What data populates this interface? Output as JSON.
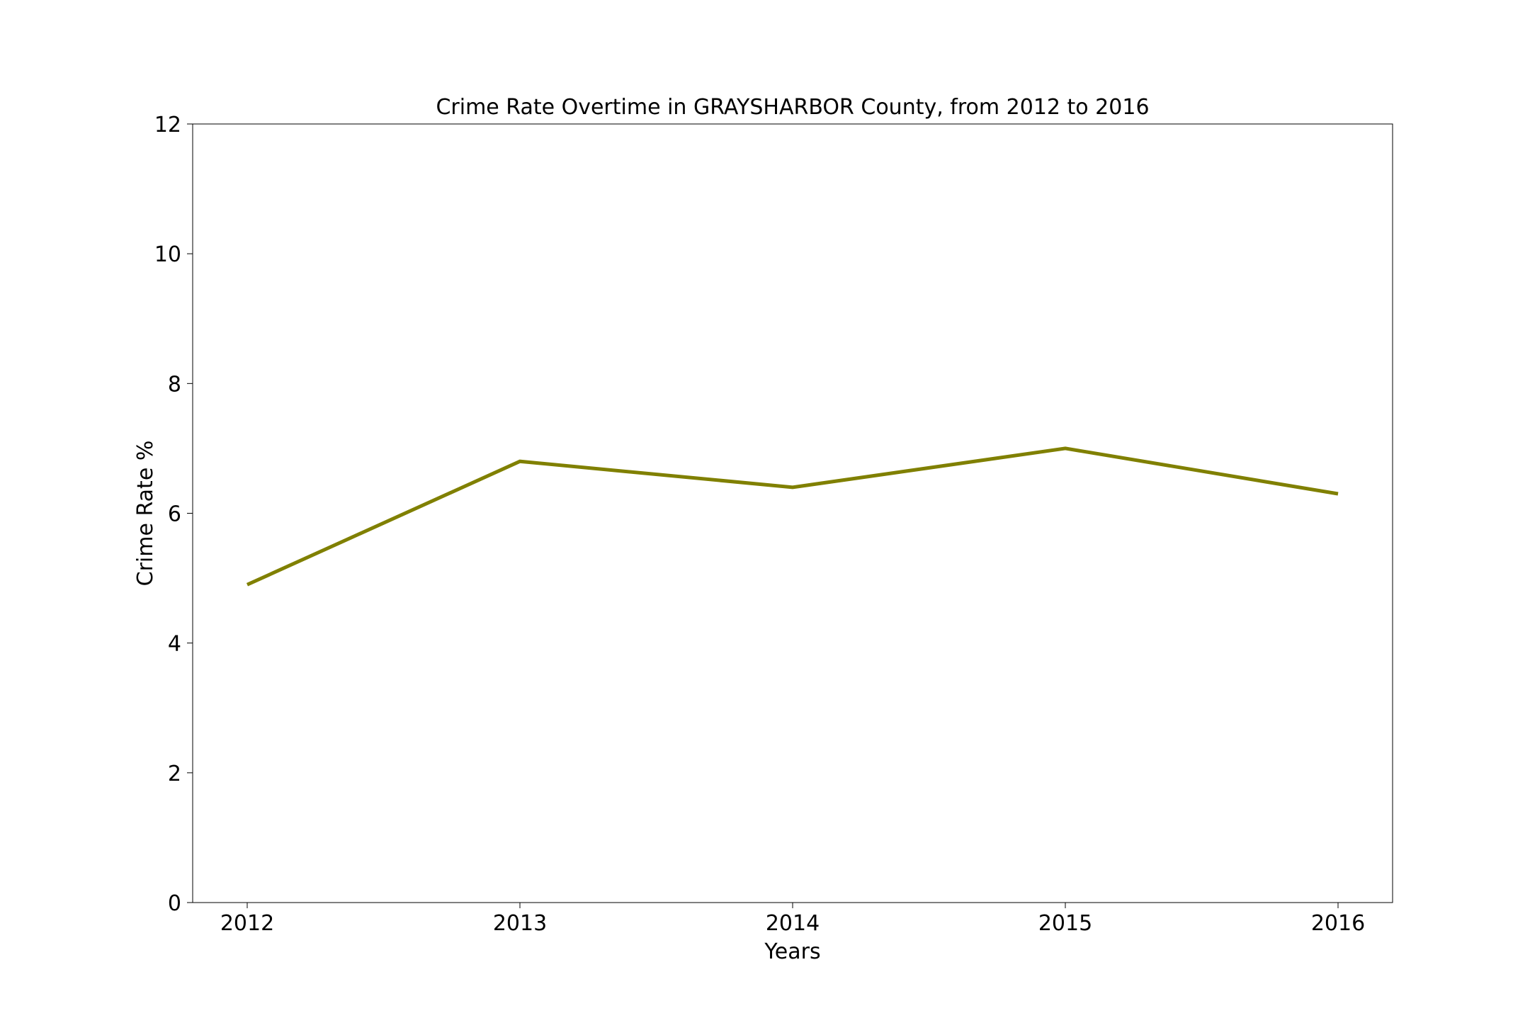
{
  "chart_data": {
    "type": "line",
    "title": "Crime Rate Overtime in GRAYSHARBOR County, from 2012 to 2016",
    "xlabel": "Years",
    "ylabel": "Crime Rate %",
    "categories": [
      "2012",
      "2013",
      "2014",
      "2015",
      "2016"
    ],
    "x": [
      2012,
      2013,
      2014,
      2015,
      2016
    ],
    "series": [
      {
        "values": [
          4.9,
          6.8,
          6.4,
          7.0,
          6.3
        ],
        "color": "#808000"
      }
    ],
    "ylim": [
      0,
      12
    ],
    "yticks": [
      0,
      2,
      4,
      6,
      8,
      10,
      12
    ],
    "grid": false,
    "legend": "none"
  }
}
